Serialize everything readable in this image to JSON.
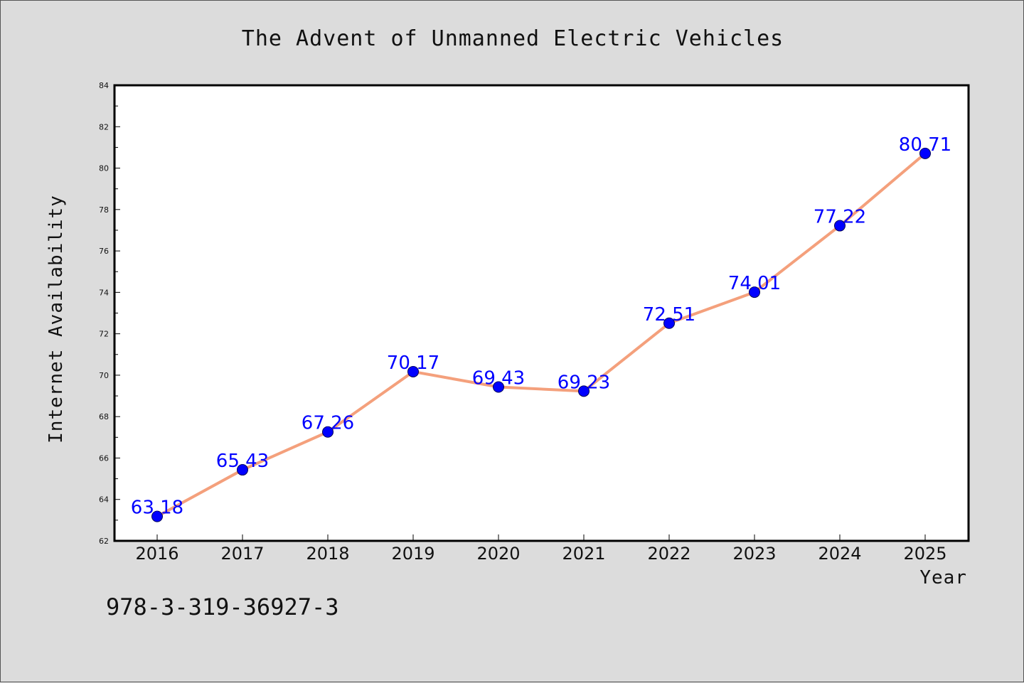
{
  "chart_data": {
    "type": "line",
    "title": "The Advent of Unmanned Electric Vehicles",
    "xlabel": "Year",
    "ylabel": "Internet Availability",
    "x": [
      "2016",
      "2017",
      "2018",
      "2019",
      "2020",
      "2021",
      "2022",
      "2023",
      "2024",
      "2025"
    ],
    "values": [
      63.18,
      65.43,
      67.26,
      70.17,
      69.43,
      69.23,
      72.51,
      74.01,
      77.22,
      80.71
    ],
    "data_labels": [
      "63.18",
      "65.43",
      "67.26",
      "70.17",
      "69.43",
      "69.23",
      "72.51",
      "74.01",
      "77.22",
      "80.71"
    ],
    "ylim": [
      62,
      84
    ],
    "y_ticks": [
      62,
      64,
      66,
      68,
      70,
      72,
      74,
      76,
      78,
      80,
      82,
      84
    ],
    "grid": false,
    "colors": {
      "line": "#f4a07c",
      "marker_fill": "#0000ff",
      "marker_edge": "#000055",
      "data_label": "#0000ff",
      "plot_background": "#ffffff",
      "figure_background": "#dcdcdc"
    }
  },
  "footer": {
    "code": "978-3-319-36927-3"
  }
}
